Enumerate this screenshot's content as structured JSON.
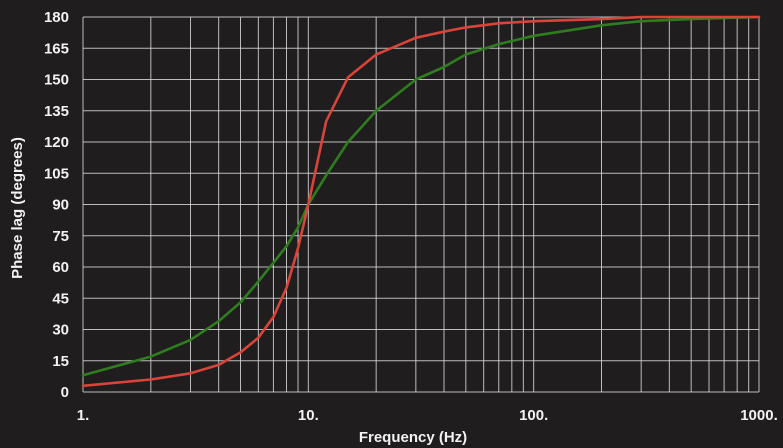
{
  "chart_data": {
    "type": "line",
    "title": "",
    "xlabel": "Frequency (Hz)",
    "ylabel": "Phase lag (degrees)",
    "x_scale": "log",
    "xlim": [
      1,
      1000
    ],
    "ylim": [
      0,
      180
    ],
    "x_ticks": [
      1,
      10,
      100,
      1000
    ],
    "x_tick_labels": [
      "1.",
      "10.",
      "100.",
      "1000."
    ],
    "y_ticks": [
      0,
      15,
      30,
      45,
      60,
      75,
      90,
      105,
      120,
      135,
      150,
      165,
      180
    ],
    "y_tick_labels": [
      "0",
      "15",
      "30",
      "45",
      "60",
      "75",
      "90",
      "105",
      "120",
      "135",
      "150",
      "165",
      "180"
    ],
    "grid": true,
    "legend": "none",
    "background_color": "#1f1d1d",
    "grid_color": "#d8d8d8",
    "text_color": "#f2f2f2",
    "series": [
      {
        "color": "#2e7d1f",
        "x": [
          1,
          2,
          3,
          4,
          5,
          6,
          7,
          8,
          9,
          10,
          12,
          15,
          20,
          30,
          40,
          50,
          70,
          100,
          200,
          300,
          500,
          1000
        ],
        "y": [
          8,
          17,
          25,
          34,
          43,
          53,
          62,
          70,
          79,
          90,
          104,
          120,
          135,
          150,
          156,
          162,
          167,
          171,
          176,
          178,
          179,
          180
        ]
      },
      {
        "color": "#d8443a",
        "x": [
          1,
          2,
          3,
          4,
          5,
          6,
          7,
          8,
          9,
          10,
          12,
          15,
          20,
          30,
          40,
          50,
          70,
          100,
          200,
          300,
          500,
          1000
        ],
        "y": [
          3,
          6,
          9,
          13,
          19,
          26,
          36,
          50,
          69,
          90,
          130,
          151,
          162,
          170,
          173,
          175,
          177,
          178,
          179,
          180,
          180,
          180
        ]
      }
    ]
  }
}
